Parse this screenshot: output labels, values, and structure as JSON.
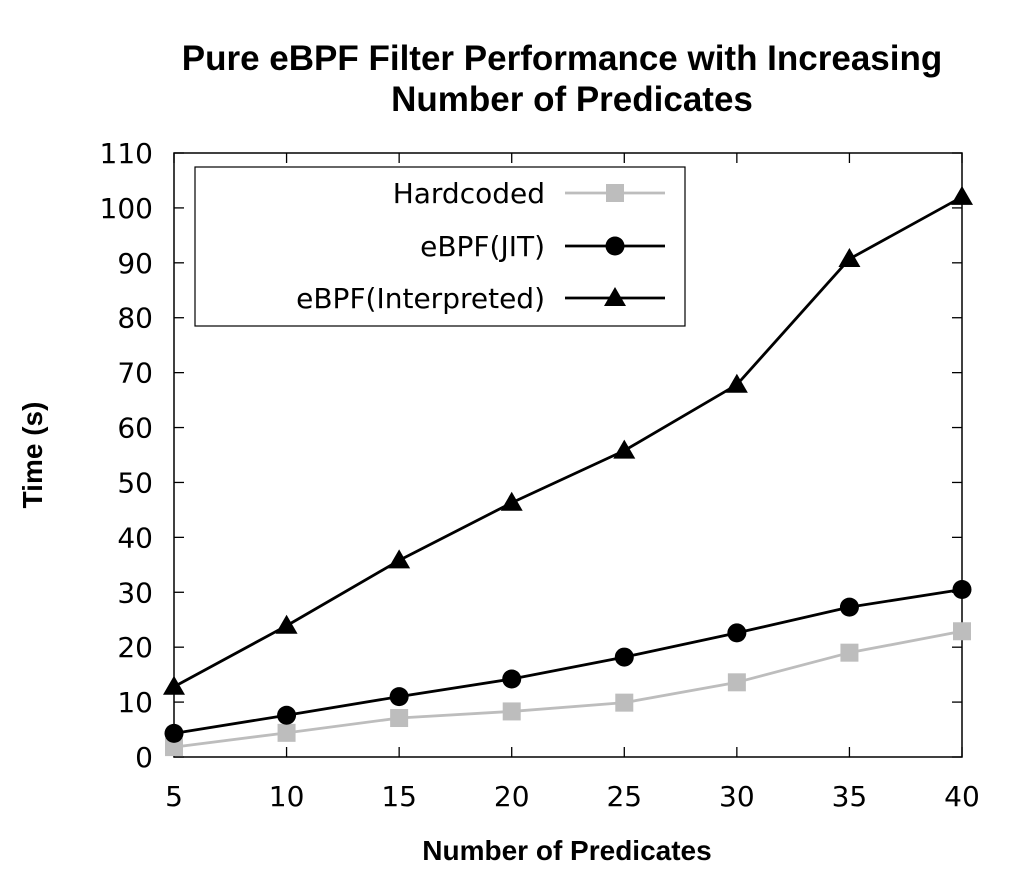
{
  "chart_data": {
    "type": "line",
    "title": "Pure eBPF Filter Performance with Increasing Number of Predicates",
    "title_lines": [
      "Pure eBPF Filter Performance with Increasing",
      "Number of Predicates"
    ],
    "xlabel": "Number of Predicates",
    "ylabel": "Time (s)",
    "x": [
      5,
      10,
      15,
      20,
      25,
      30,
      35,
      40
    ],
    "xlim": [
      5,
      40
    ],
    "ylim": [
      0,
      110
    ],
    "xticks": [
      5,
      10,
      15,
      20,
      25,
      30,
      35,
      40
    ],
    "yticks": [
      0,
      10,
      20,
      30,
      40,
      50,
      60,
      70,
      80,
      90,
      100,
      110
    ],
    "grid": false,
    "legend_position": "top-left",
    "series": [
      {
        "name": "Hardcoded",
        "marker": "square",
        "color": "#bdbdbd",
        "values": [
          1.8,
          4.4,
          7.1,
          8.3,
          9.9,
          13.6,
          19.0,
          22.9
        ]
      },
      {
        "name": "eBPF(JIT)",
        "marker": "circle",
        "color": "#000000",
        "values": [
          4.3,
          7.6,
          11.0,
          14.2,
          18.2,
          22.6,
          27.3,
          30.5
        ]
      },
      {
        "name": "eBPF(Interpreted)",
        "marker": "triangle",
        "color": "#000000",
        "values": [
          12.8,
          23.9,
          35.8,
          46.3,
          55.8,
          67.8,
          90.7,
          102.0
        ]
      }
    ]
  }
}
